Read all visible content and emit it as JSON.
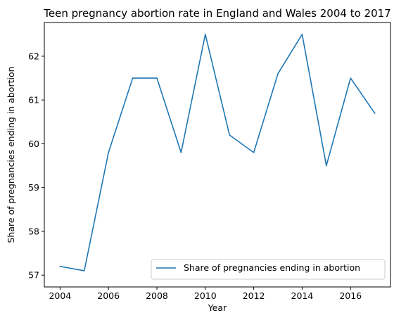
{
  "chart_data": {
    "type": "line",
    "title": "Teen pregnancy abortion rate in England and Wales 2004 to 2017",
    "xlabel": "Year",
    "ylabel": "Share of pregnancies ending in abortion",
    "xlim": [
      2003.35,
      2017.65
    ],
    "ylim": [
      56.73,
      62.77
    ],
    "xticks": [
      2004,
      2006,
      2008,
      2010,
      2012,
      2014,
      2016
    ],
    "yticks": [
      57,
      58,
      59,
      60,
      61,
      62
    ],
    "grid": false,
    "legend_position": "lower-right",
    "series": [
      {
        "name": "Share of pregnancies ending in abortion",
        "color": "#1f77b4",
        "x": [
          2004,
          2005,
          2006,
          2007,
          2008,
          2009,
          2010,
          2011,
          2012,
          2013,
          2014,
          2015,
          2016,
          2017
        ],
        "y": [
          57.2,
          57.1,
          59.8,
          61.5,
          61.5,
          59.8,
          62.5,
          60.2,
          59.8,
          61.6,
          62.5,
          59.5,
          61.5,
          60.7
        ]
      }
    ]
  }
}
